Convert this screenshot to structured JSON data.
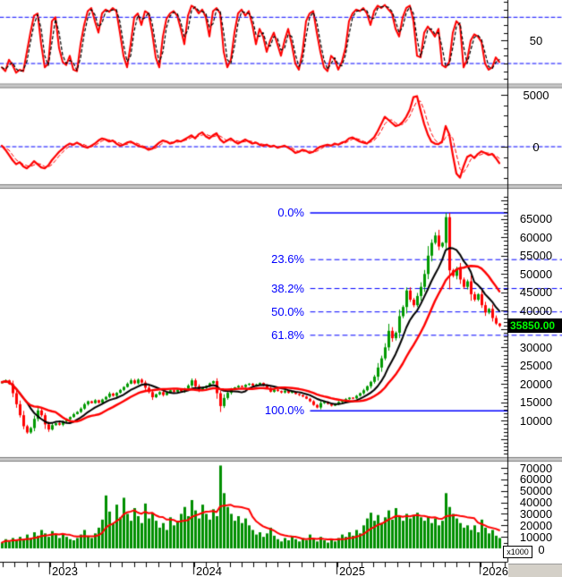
{
  "colors": {
    "up": "#009a00",
    "down": "#ff0000",
    "volume_bar": "#008f00",
    "ma_fast": "#000000",
    "ma_slow": "#ff0000",
    "indicator": "#ff0000",
    "indicator_signal": "#000000",
    "guide": "#0000ff",
    "fib": "#0000ff",
    "axis": "#000000",
    "separator": "#c9c9c9",
    "separator_edge": "#7a7a7a",
    "badge_bg": "#000000",
    "badge_text": "#00ff00"
  },
  "x_axis": {
    "year_labels": [
      "2023",
      "2024",
      "2025",
      "2026"
    ],
    "year_ticks_x": [
      55,
      216,
      376,
      536
    ]
  },
  "chart_data": [
    {
      "id": "stochastic-oscillator",
      "type": "line",
      "panel": "top",
      "ylim": [
        0,
        100
      ],
      "guide_levels": [
        80,
        20
      ],
      "axis_ticks": [
        {
          "value": 50,
          "label": "50"
        }
      ],
      "values": [
        15,
        10,
        25,
        18,
        8,
        12,
        10,
        35,
        60,
        82,
        85,
        45,
        15,
        20,
        75,
        80,
        40,
        22,
        18,
        30,
        12,
        10,
        45,
        70,
        88,
        92,
        75,
        60,
        85,
        90,
        87,
        92,
        88,
        60,
        30,
        15,
        45,
        80,
        85,
        70,
        88,
        85,
        60,
        28,
        15,
        55,
        78,
        85,
        88,
        82,
        65,
        45,
        82,
        95,
        92,
        85,
        90,
        80,
        55,
        88,
        92,
        85,
        35,
        15,
        25,
        60,
        85,
        90,
        82,
        88,
        70,
        45,
        65,
        55,
        35,
        50,
        60,
        45,
        30,
        50,
        65,
        45,
        20,
        12,
        35,
        75,
        85,
        88,
        60,
        35,
        15,
        10,
        30,
        25,
        12,
        22,
        40,
        75,
        85,
        90,
        88,
        92,
        85,
        70,
        88,
        95,
        92,
        96,
        90,
        85,
        65,
        55,
        80,
        92,
        95,
        75,
        30,
        28,
        60,
        68,
        62,
        55,
        65,
        18,
        15,
        22,
        60,
        75,
        70,
        15,
        25,
        50,
        58,
        55,
        48,
        20,
        12,
        15,
        28,
        22
      ]
    },
    {
      "id": "momentum",
      "type": "line",
      "panel": "second",
      "ylim": [
        -4000,
        6000
      ],
      "guide_levels": [
        0
      ],
      "axis_ticks": [
        {
          "value": 5000,
          "label": "5000"
        },
        {
          "value": 0,
          "label": "0"
        }
      ],
      "values": [
        100,
        -300,
        -800,
        -1300,
        -1700,
        -1500,
        -1900,
        -2100,
        -1800,
        -1400,
        -1700,
        -2000,
        -2100,
        -1800,
        -1300,
        -900,
        -500,
        -200,
        100,
        300,
        200,
        400,
        200,
        0,
        -100,
        100,
        300,
        600,
        800,
        700,
        500,
        600,
        300,
        100,
        200,
        400,
        500,
        300,
        100,
        0,
        -100,
        -300,
        -200,
        100,
        400,
        600,
        500,
        300,
        400,
        600,
        500,
        700,
        900,
        1100,
        800,
        1200,
        1400,
        1000,
        800,
        1100,
        1300,
        700,
        400,
        600,
        800,
        500,
        300,
        500,
        700,
        500,
        300,
        400,
        200,
        100,
        200,
        0,
        100,
        -100,
        0,
        100,
        -100,
        -300,
        -600,
        -500,
        -300,
        -400,
        -600,
        -500,
        -200,
        0,
        100,
        200,
        100,
        300,
        200,
        400,
        500,
        800,
        900,
        700,
        500,
        400,
        300,
        600,
        900,
        1500,
        2200,
        2900,
        2600,
        2300,
        2000,
        2100,
        2400,
        2900,
        3600,
        4800,
        4900,
        3500,
        2200,
        1200,
        500,
        300,
        250,
        500,
        2000,
        1200,
        -800,
        -2600,
        -3000,
        -1900,
        -1000,
        -800,
        -1100,
        -700,
        -450,
        -600,
        -800,
        -700,
        -1100,
        -1600
      ]
    },
    {
      "id": "daily-price-candles",
      "type": "candlestick",
      "panel": "main",
      "ylim": [
        300,
        72000
      ],
      "axis_tick_labels": [
        "65000",
        "60000",
        "55000",
        "50000",
        "45000",
        "40000",
        "30000",
        "25000",
        "20000",
        "15000",
        "10000"
      ],
      "axis_tick_values": [
        65000,
        60000,
        55000,
        50000,
        45000,
        40000,
        30000,
        25000,
        20000,
        15000,
        10000
      ],
      "last_price_label": "35850.00",
      "last_price": 35850,
      "fibonacci": [
        {
          "label": "0.0%",
          "price": 66660,
          "style": "solid"
        },
        {
          "label": "23.6%",
          "price": 53920,
          "style": "dashed"
        },
        {
          "label": "38.2%",
          "price": 46040,
          "style": "dashed"
        },
        {
          "label": "50.0%",
          "price": 39670,
          "style": "dashed"
        },
        {
          "label": "61.8%",
          "price": 33300,
          "style": "dashed"
        },
        {
          "label": "100.0%",
          "price": 12680,
          "style": "solid"
        }
      ],
      "closes": [
        20500,
        21000,
        20000,
        17500,
        14500,
        11500,
        8500,
        6800,
        8000,
        10500,
        12800,
        11500,
        9000,
        7600,
        8800,
        9300,
        8900,
        9800,
        10400,
        11000,
        11800,
        12400,
        13300,
        14500,
        15300,
        14800,
        15600,
        14900,
        15800,
        16500,
        17400,
        16800,
        17600,
        18400,
        19200,
        20100,
        21000,
        20200,
        21200,
        20400,
        19000,
        17800,
        16400,
        17200,
        17800,
        17000,
        17700,
        18300,
        17900,
        18400,
        18000,
        18800,
        19600,
        21000,
        19400,
        18300,
        18900,
        19500,
        20200,
        20800,
        17500,
        14000,
        16200,
        17600,
        18700,
        19100,
        19500,
        19200,
        19800,
        20100,
        19600,
        19900,
        20300,
        19700,
        18900,
        17900,
        18500,
        18100,
        17700,
        18200,
        17600,
        17900,
        17300,
        17000,
        16600,
        16000,
        15300,
        14300,
        13600,
        14800,
        15200,
        14600,
        14100,
        14500,
        15100,
        15500,
        15900,
        16300,
        16100,
        16800,
        17500,
        18300,
        19400,
        20600,
        22000,
        24500,
        27000,
        30000,
        34500,
        32500,
        34000,
        38500,
        41000,
        45500,
        43000,
        41500,
        44000,
        46500,
        50000,
        55000,
        58500,
        60500,
        57500,
        58500,
        65500,
        51000,
        49500,
        51500,
        48500,
        46500,
        48000,
        44500,
        43000,
        44500,
        41500,
        39500,
        40500,
        38000,
        36500,
        35850
      ]
    },
    {
      "id": "volume",
      "type": "bar",
      "panel": "bottom",
      "unit_label": "x1000",
      "zero_label": "0",
      "ylim": [
        0,
        75000
      ],
      "axis_tick_labels": [
        "70000",
        "60000",
        "50000",
        "40000",
        "30000",
        "20000",
        "10000"
      ],
      "axis_tick_values": [
        70,
        60,
        50,
        40,
        30,
        20,
        10
      ],
      "values": [
        5,
        8,
        6,
        9,
        7,
        10,
        8,
        12,
        9,
        14,
        11,
        16,
        13,
        10,
        15,
        12,
        9,
        13,
        10,
        8,
        7,
        9,
        12,
        16,
        11,
        9,
        13,
        18,
        25,
        46,
        32,
        22,
        38,
        27,
        44,
        30,
        24,
        35,
        28,
        22,
        39,
        26,
        31,
        24,
        18,
        22,
        16,
        27,
        20,
        24,
        30,
        36,
        28,
        42,
        33,
        26,
        38,
        30,
        25,
        34,
        28,
        72,
        48,
        36,
        30,
        24,
        28,
        22,
        26,
        20,
        16,
        12,
        14,
        10,
        13,
        18,
        11,
        8,
        6,
        9,
        7,
        11,
        8,
        6,
        9,
        7,
        12,
        8,
        6,
        10,
        7,
        5,
        8,
        6,
        9,
        12,
        10,
        14,
        11,
        16,
        13,
        20,
        26,
        31,
        24,
        29,
        22,
        27,
        33,
        25,
        35,
        28,
        24,
        30,
        26,
        29,
        31,
        27,
        24,
        28,
        22,
        26,
        20,
        24,
        48,
        36,
        30,
        26,
        22,
        18,
        20,
        16,
        20,
        14,
        25,
        18,
        13,
        16,
        11,
        9
      ]
    }
  ]
}
